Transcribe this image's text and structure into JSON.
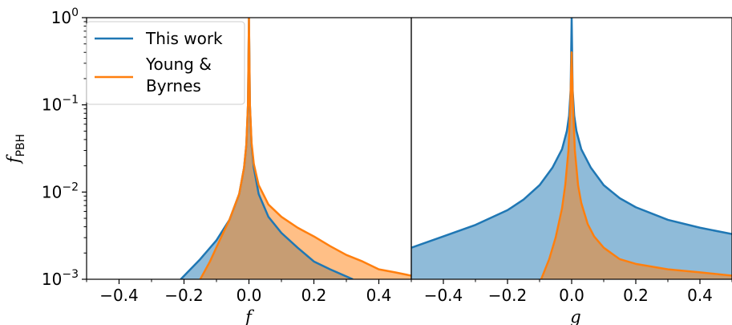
{
  "chart_data": [
    {
      "type": "area",
      "xlabel": "f",
      "ylabel": "f_PBH",
      "xlim": [
        -0.5,
        0.5
      ],
      "ylim": [
        0.001,
        1
      ],
      "yscale": "log",
      "xticks": [
        "−0.4",
        "−0.2",
        "0.0",
        "0.2",
        "0.4"
      ],
      "xtick_values": [
        -0.4,
        -0.2,
        0.0,
        0.2,
        0.4
      ],
      "yticks": [
        {
          "base": "10",
          "exp": "0",
          "value": 1
        },
        {
          "base": "10",
          "exp": "−1",
          "value": 0.1
        },
        {
          "base": "10",
          "exp": "−2",
          "value": 0.01
        },
        {
          "base": "10",
          "exp": "−3",
          "value": 0.001
        }
      ],
      "legend": {
        "position": "top-left",
        "entries": [
          "This work",
          "Young & Byrnes"
        ]
      },
      "series": [
        {
          "name": "This work",
          "color": "#1f77b4",
          "x": [
            -0.21,
            -0.15,
            -0.1,
            -0.06,
            -0.03,
            -0.015,
            -0.008,
            -0.003,
            0.0,
            0.003,
            0.008,
            0.015,
            0.03,
            0.06,
            0.1,
            0.15,
            0.2,
            0.25,
            0.32
          ],
          "y": [
            0.001,
            0.0017,
            0.0028,
            0.0048,
            0.0095,
            0.019,
            0.035,
            0.1,
            1.0,
            0.1,
            0.035,
            0.019,
            0.0095,
            0.0052,
            0.0034,
            0.0023,
            0.0016,
            0.0013,
            0.001
          ]
        },
        {
          "name": "Young & Byrnes",
          "color": "#ff7f0e",
          "x": [
            -0.15,
            -0.12,
            -0.09,
            -0.06,
            -0.03,
            -0.015,
            -0.008,
            -0.003,
            0.0,
            0.003,
            0.008,
            0.015,
            0.03,
            0.06,
            0.1,
            0.15,
            0.2,
            0.25,
            0.3,
            0.35,
            0.4,
            0.45,
            0.5
          ],
          "y": [
            0.001,
            0.0016,
            0.0028,
            0.0048,
            0.0095,
            0.019,
            0.035,
            0.1,
            1.0,
            0.1,
            0.037,
            0.021,
            0.012,
            0.0072,
            0.0052,
            0.0039,
            0.0031,
            0.0024,
            0.0019,
            0.0016,
            0.0013,
            0.0012,
            0.0011
          ]
        }
      ]
    },
    {
      "type": "area",
      "xlabel": "g",
      "xlim": [
        -0.5,
        0.5
      ],
      "ylim": [
        0.001,
        1
      ],
      "yscale": "log",
      "xticks": [
        "−0.4",
        "−0.2",
        "0.0",
        "0.2",
        "0.4"
      ],
      "xtick_values": [
        -0.4,
        -0.2,
        0.0,
        0.2,
        0.4
      ],
      "series": [
        {
          "name": "This work",
          "color": "#1f77b4",
          "x": [
            -0.5,
            -0.4,
            -0.3,
            -0.2,
            -0.15,
            -0.1,
            -0.06,
            -0.03,
            -0.015,
            -0.008,
            -0.003,
            0.0,
            0.003,
            0.008,
            0.015,
            0.03,
            0.06,
            0.1,
            0.15,
            0.2,
            0.3,
            0.4,
            0.5
          ],
          "y": [
            0.0023,
            0.0031,
            0.0042,
            0.0062,
            0.0082,
            0.012,
            0.019,
            0.031,
            0.05,
            0.075,
            0.15,
            1.0,
            0.15,
            0.075,
            0.05,
            0.031,
            0.019,
            0.012,
            0.0085,
            0.0067,
            0.0048,
            0.0039,
            0.0033
          ]
        },
        {
          "name": "Young & Byrnes",
          "color": "#ff7f0e",
          "x": [
            -0.095,
            -0.07,
            -0.05,
            -0.03,
            -0.02,
            -0.01,
            -0.004,
            0.0,
            0.004,
            0.01,
            0.02,
            0.03,
            0.05,
            0.07,
            0.1,
            0.15,
            0.2,
            0.3,
            0.4,
            0.5
          ],
          "y": [
            0.001,
            0.0017,
            0.003,
            0.0065,
            0.012,
            0.03,
            0.1,
            0.4,
            0.1,
            0.03,
            0.012,
            0.0075,
            0.0043,
            0.0031,
            0.0023,
            0.0017,
            0.0015,
            0.0013,
            0.0012,
            0.0011
          ]
        }
      ]
    }
  ]
}
